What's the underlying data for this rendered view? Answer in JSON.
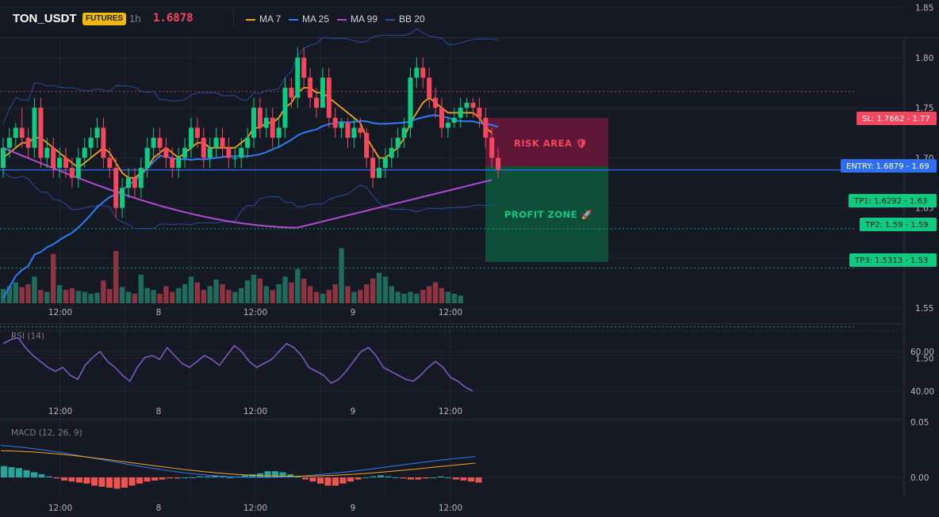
{
  "header": {
    "symbol": "TON_USDT",
    "badge": "FUTURES",
    "timeframe": "1h",
    "last_price": "1.6878",
    "indicators": [
      {
        "label": "MA 7",
        "color": "#f7a31c"
      },
      {
        "label": "MA 25",
        "color": "#2f7cf6"
      },
      {
        "label": "MA 99",
        "color": "#b04bd1"
      },
      {
        "label": "BB 20",
        "color": "#2c4a9e"
      }
    ]
  },
  "colors": {
    "up": "#0ecb81",
    "down": "#f6465d",
    "grid": "#222631",
    "axis": "#2a2e39"
  },
  "price_axis": {
    "ticks": [
      "1.85",
      "1.80",
      "1.75",
      "1.70",
      "1.65",
      "1.60",
      "1.55",
      "1.50"
    ]
  },
  "time_axis": {
    "labels": [
      "12:00",
      "8",
      "12:00",
      "9",
      "12:00"
    ]
  },
  "levels": {
    "sl": "SL: 1.7662 - 1.77",
    "entry": "ENTRY: 1.6879 - 1.69",
    "tp1": "TP1: 1.6292 - 1.63",
    "tp2": "TP2: 1.59 - 1.59",
    "tp3": "TP3: 1.5313 - 1.53"
  },
  "zones": {
    "risk": "RISK AREA 🛡",
    "profit": "PROFIT ZONE 🚀"
  },
  "chart_data": {
    "type": "candlestick",
    "price_range": [
      1.45,
      1.88
    ],
    "candles": [
      {
        "o": 1.69,
        "h": 1.72,
        "l": 1.68,
        "c": 1.71
      },
      {
        "o": 1.71,
        "h": 1.73,
        "l": 1.7,
        "c": 1.72
      },
      {
        "o": 1.72,
        "h": 1.735,
        "l": 1.71,
        "c": 1.73
      },
      {
        "o": 1.73,
        "h": 1.75,
        "l": 1.71,
        "c": 1.72
      },
      {
        "o": 1.72,
        "h": 1.73,
        "l": 1.7,
        "c": 1.71
      },
      {
        "o": 1.71,
        "h": 1.76,
        "l": 1.7,
        "c": 1.75
      },
      {
        "o": 1.75,
        "h": 1.76,
        "l": 1.69,
        "c": 1.7
      },
      {
        "o": 1.7,
        "h": 1.72,
        "l": 1.69,
        "c": 1.71
      },
      {
        "o": 1.71,
        "h": 1.72,
        "l": 1.68,
        "c": 1.69
      },
      {
        "o": 1.69,
        "h": 1.71,
        "l": 1.68,
        "c": 1.7
      },
      {
        "o": 1.7,
        "h": 1.71,
        "l": 1.68,
        "c": 1.69
      },
      {
        "o": 1.69,
        "h": 1.7,
        "l": 1.67,
        "c": 1.68
      },
      {
        "o": 1.68,
        "h": 1.71,
        "l": 1.67,
        "c": 1.7
      },
      {
        "o": 1.7,
        "h": 1.72,
        "l": 1.69,
        "c": 1.71
      },
      {
        "o": 1.71,
        "h": 1.73,
        "l": 1.7,
        "c": 1.72
      },
      {
        "o": 1.72,
        "h": 1.74,
        "l": 1.71,
        "c": 1.73
      },
      {
        "o": 1.73,
        "h": 1.74,
        "l": 1.69,
        "c": 1.7
      },
      {
        "o": 1.7,
        "h": 1.71,
        "l": 1.68,
        "c": 1.69
      },
      {
        "o": 1.69,
        "h": 1.7,
        "l": 1.64,
        "c": 1.65
      },
      {
        "o": 1.65,
        "h": 1.68,
        "l": 1.64,
        "c": 1.67
      },
      {
        "o": 1.67,
        "h": 1.69,
        "l": 1.66,
        "c": 1.68
      },
      {
        "o": 1.68,
        "h": 1.69,
        "l": 1.66,
        "c": 1.67
      },
      {
        "o": 1.67,
        "h": 1.7,
        "l": 1.66,
        "c": 1.69
      },
      {
        "o": 1.69,
        "h": 1.72,
        "l": 1.68,
        "c": 1.71
      },
      {
        "o": 1.71,
        "h": 1.73,
        "l": 1.7,
        "c": 1.72
      },
      {
        "o": 1.72,
        "h": 1.73,
        "l": 1.7,
        "c": 1.71
      },
      {
        "o": 1.71,
        "h": 1.72,
        "l": 1.69,
        "c": 1.7
      },
      {
        "o": 1.7,
        "h": 1.71,
        "l": 1.68,
        "c": 1.69
      },
      {
        "o": 1.69,
        "h": 1.71,
        "l": 1.68,
        "c": 1.7
      },
      {
        "o": 1.7,
        "h": 1.72,
        "l": 1.69,
        "c": 1.71
      },
      {
        "o": 1.71,
        "h": 1.74,
        "l": 1.7,
        "c": 1.73
      },
      {
        "o": 1.73,
        "h": 1.74,
        "l": 1.71,
        "c": 1.72
      },
      {
        "o": 1.72,
        "h": 1.73,
        "l": 1.69,
        "c": 1.7
      },
      {
        "o": 1.7,
        "h": 1.72,
        "l": 1.69,
        "c": 1.71
      },
      {
        "o": 1.71,
        "h": 1.73,
        "l": 1.7,
        "c": 1.72
      },
      {
        "o": 1.72,
        "h": 1.73,
        "l": 1.7,
        "c": 1.71
      },
      {
        "o": 1.71,
        "h": 1.72,
        "l": 1.69,
        "c": 1.7
      },
      {
        "o": 1.7,
        "h": 1.71,
        "l": 1.69,
        "c": 1.7
      },
      {
        "o": 1.7,
        "h": 1.72,
        "l": 1.69,
        "c": 1.71
      },
      {
        "o": 1.71,
        "h": 1.73,
        "l": 1.7,
        "c": 1.72
      },
      {
        "o": 1.72,
        "h": 1.76,
        "l": 1.71,
        "c": 1.75
      },
      {
        "o": 1.75,
        "h": 1.76,
        "l": 1.72,
        "c": 1.73
      },
      {
        "o": 1.73,
        "h": 1.75,
        "l": 1.72,
        "c": 1.74
      },
      {
        "o": 1.74,
        "h": 1.75,
        "l": 1.71,
        "c": 1.72
      },
      {
        "o": 1.72,
        "h": 1.74,
        "l": 1.71,
        "c": 1.73
      },
      {
        "o": 1.73,
        "h": 1.78,
        "l": 1.72,
        "c": 1.77
      },
      {
        "o": 1.77,
        "h": 1.78,
        "l": 1.75,
        "c": 1.76
      },
      {
        "o": 1.76,
        "h": 1.81,
        "l": 1.75,
        "c": 1.8
      },
      {
        "o": 1.8,
        "h": 1.81,
        "l": 1.77,
        "c": 1.78
      },
      {
        "o": 1.78,
        "h": 1.79,
        "l": 1.75,
        "c": 1.76
      },
      {
        "o": 1.76,
        "h": 1.77,
        "l": 1.74,
        "c": 1.75
      },
      {
        "o": 1.75,
        "h": 1.79,
        "l": 1.75,
        "c": 1.78
      },
      {
        "o": 1.78,
        "h": 1.79,
        "l": 1.73,
        "c": 1.74
      },
      {
        "o": 1.74,
        "h": 1.75,
        "l": 1.72,
        "c": 1.73
      },
      {
        "o": 1.73,
        "h": 1.74,
        "l": 1.72,
        "c": 1.735
      },
      {
        "o": 1.735,
        "h": 1.74,
        "l": 1.71,
        "c": 1.72
      },
      {
        "o": 1.72,
        "h": 1.74,
        "l": 1.71,
        "c": 1.73
      },
      {
        "o": 1.73,
        "h": 1.74,
        "l": 1.72,
        "c": 1.725
      },
      {
        "o": 1.725,
        "h": 1.73,
        "l": 1.69,
        "c": 1.7
      },
      {
        "o": 1.7,
        "h": 1.71,
        "l": 1.67,
        "c": 1.68
      },
      {
        "o": 1.68,
        "h": 1.7,
        "l": 1.68,
        "c": 1.69
      },
      {
        "o": 1.69,
        "h": 1.71,
        "l": 1.68,
        "c": 1.7
      },
      {
        "o": 1.7,
        "h": 1.72,
        "l": 1.69,
        "c": 1.71
      },
      {
        "o": 1.71,
        "h": 1.73,
        "l": 1.7,
        "c": 1.72
      },
      {
        "o": 1.72,
        "h": 1.74,
        "l": 1.71,
        "c": 1.73
      },
      {
        "o": 1.73,
        "h": 1.79,
        "l": 1.72,
        "c": 1.78
      },
      {
        "o": 1.78,
        "h": 1.8,
        "l": 1.77,
        "c": 1.79
      },
      {
        "o": 1.79,
        "h": 1.8,
        "l": 1.77,
        "c": 1.78
      },
      {
        "o": 1.78,
        "h": 1.79,
        "l": 1.75,
        "c": 1.76
      },
      {
        "o": 1.76,
        "h": 1.77,
        "l": 1.74,
        "c": 1.75
      },
      {
        "o": 1.75,
        "h": 1.76,
        "l": 1.72,
        "c": 1.73
      },
      {
        "o": 1.73,
        "h": 1.74,
        "l": 1.72,
        "c": 1.735
      },
      {
        "o": 1.735,
        "h": 1.75,
        "l": 1.73,
        "c": 1.74
      },
      {
        "o": 1.74,
        "h": 1.76,
        "l": 1.73,
        "c": 1.75
      },
      {
        "o": 1.75,
        "h": 1.76,
        "l": 1.74,
        "c": 1.755
      },
      {
        "o": 1.755,
        "h": 1.76,
        "l": 1.74,
        "c": 1.75
      },
      {
        "o": 1.75,
        "h": 1.76,
        "l": 1.73,
        "c": 1.74
      },
      {
        "o": 1.74,
        "h": 1.75,
        "l": 1.71,
        "c": 1.72
      },
      {
        "o": 1.72,
        "h": 1.73,
        "l": 1.69,
        "c": 1.7
      },
      {
        "o": 1.7,
        "h": 1.71,
        "l": 1.68,
        "c": 1.6878
      }
    ],
    "volume": [
      15,
      18,
      22,
      17,
      20,
      28,
      14,
      12,
      52,
      19,
      14,
      16,
      13,
      12,
      10,
      11,
      24,
      15,
      55,
      17,
      12,
      10,
      30,
      16,
      14,
      10,
      18,
      12,
      16,
      20,
      28,
      22,
      14,
      18,
      25,
      20,
      14,
      12,
      16,
      24,
      30,
      26,
      18,
      14,
      20,
      28,
      22,
      36,
      26,
      18,
      12,
      10,
      14,
      20,
      58,
      18,
      12,
      14,
      20,
      26,
      32,
      28,
      18,
      12,
      10,
      12,
      10,
      14,
      18,
      22,
      16,
      12,
      10,
      8
    ],
    "ma7": [
      1.7,
      1.705,
      1.71,
      1.715,
      1.715,
      1.72,
      1.72,
      1.715,
      1.71,
      1.705,
      1.7,
      1.695,
      1.69,
      1.695,
      1.7,
      1.705,
      1.71,
      1.705,
      1.695,
      1.685,
      1.68,
      1.68,
      1.685,
      1.69,
      1.7,
      1.705,
      1.71,
      1.705,
      1.7,
      1.705,
      1.71,
      1.715,
      1.715,
      1.71,
      1.71,
      1.71,
      1.71,
      1.71,
      1.715,
      1.72,
      1.73,
      1.73,
      1.735,
      1.735,
      1.74,
      1.75,
      1.755,
      1.765,
      1.77,
      1.77,
      1.765,
      1.765,
      1.76,
      1.755,
      1.75,
      1.745,
      1.74,
      1.735,
      1.72,
      1.71,
      1.7,
      1.7,
      1.705,
      1.71,
      1.72,
      1.735,
      1.745,
      1.755,
      1.76,
      1.755,
      1.75,
      1.745,
      1.745,
      1.745,
      1.745,
      1.745,
      1.74,
      1.73,
      1.725
    ],
    "rsi": [
      64,
      66,
      67,
      62,
      58,
      55,
      52,
      50,
      52,
      48,
      46,
      53,
      57,
      60,
      55,
      52,
      48,
      45,
      52,
      57,
      58,
      56,
      62,
      58,
      54,
      52,
      55,
      58,
      56,
      53,
      58,
      63,
      60,
      55,
      52,
      54,
      56,
      60,
      64,
      62,
      58,
      52,
      50,
      48,
      44,
      46,
      50,
      55,
      60,
      62,
      58,
      52,
      50,
      48,
      46,
      45,
      48,
      52,
      55,
      52,
      47,
      45,
      42,
      40
    ],
    "macd_hist": [
      0.011,
      0.01,
      0.009,
      0.007,
      0.005,
      0.003,
      0.001,
      -0.001,
      -0.003,
      -0.004,
      -0.005,
      -0.006,
      -0.008,
      -0.009,
      -0.01,
      -0.011,
      -0.01,
      -0.008,
      -0.006,
      -0.004,
      -0.003,
      -0.002,
      -0.001,
      -0.001,
      0.0,
      0.0,
      0.001,
      0.001,
      0.002,
      0.001,
      0.0,
      0.001,
      0.002,
      0.003,
      0.004,
      0.006,
      0.006,
      0.005,
      0.003,
      0.001,
      -0.002,
      -0.004,
      -0.006,
      -0.008,
      -0.008,
      -0.006,
      -0.004,
      -0.002,
      0.0,
      0.001,
      0.002,
      0.001,
      0.0,
      -0.001,
      -0.002,
      -0.002,
      -0.001,
      0.0,
      0.001,
      0.0,
      -0.002,
      -0.003,
      -0.004,
      -0.005
    ]
  }
}
